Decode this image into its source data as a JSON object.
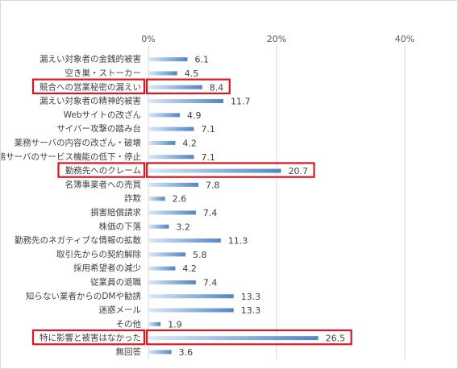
{
  "chart_data": {
    "type": "bar",
    "orientation": "horizontal",
    "xlim": [
      0,
      40
    ],
    "ticks": [
      "0%",
      "20%",
      "40%"
    ],
    "tick_values": [
      0,
      20,
      40
    ],
    "grid": true,
    "categories": [
      "漏えい対象者の金銭的被害",
      "空き巣・ストーカー",
      "競合への営業秘密の漏えい",
      "漏えい対象者の精神的被害",
      "Webサイトの改ざん",
      "サイバー攻撃の踏み台",
      "業務サーバの内容の改ざん・破壊",
      "業務サーバのサービス機能の低下・停止",
      "勤務先へのクレーム",
      "名簿事業者への売買",
      "詐欺",
      "損害賠償請求",
      "株価の下落",
      "勤務先のネガティブな情報の拡散",
      "取引先からの契約解除",
      "採用希望者の減少",
      "従業員の退職",
      "知らない業者からのDMや勧誘",
      "迷惑メール",
      "その他",
      "特に影響と被害はなかった",
      "無回答"
    ],
    "values": [
      6.1,
      4.5,
      8.4,
      11.7,
      4.9,
      7.1,
      4.2,
      7.1,
      20.7,
      7.8,
      2.6,
      7.4,
      3.2,
      11.3,
      5.8,
      4.2,
      7.4,
      13.3,
      13.3,
      1.9,
      26.5,
      3.6
    ],
    "value_labels": [
      "6.1",
      "4.5",
      "8.4",
      "11.7",
      "4.9",
      "7.1",
      "4.2",
      "7.1",
      "20.7",
      "7.8",
      "2.6",
      "7.4",
      "3.2",
      "11.3",
      "5.8",
      "4.2",
      "7.4",
      "13.3",
      "13.3",
      "1.9",
      "26.5",
      "3.6"
    ],
    "highlighted": [
      "競合への営業秘密の漏えい",
      "勤務先へのクレーム",
      "特に影響と被害はなかった"
    ],
    "colors": {
      "bar_dark": "#4f86c6",
      "bar_light": "#dce8f6",
      "highlight": "#e0141e",
      "grid": "#d9d9d9"
    }
  }
}
